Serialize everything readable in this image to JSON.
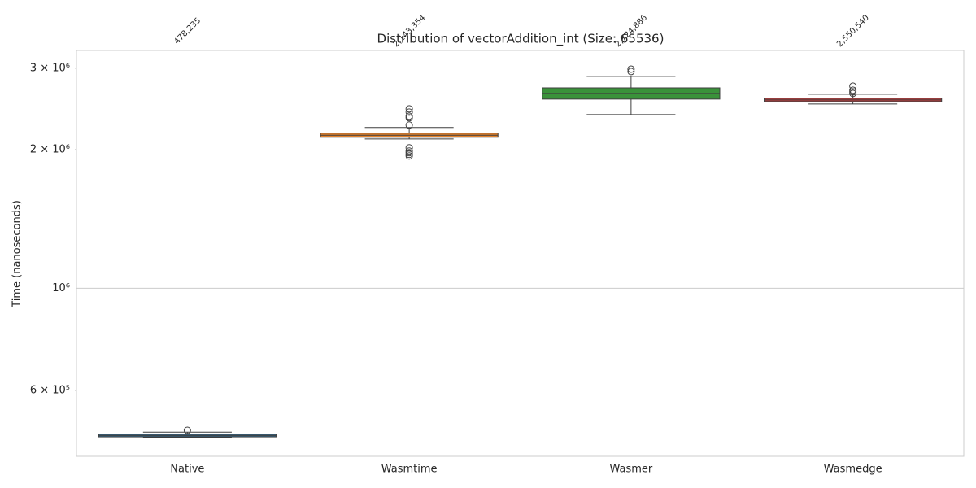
{
  "chart_data": {
    "type": "box",
    "title": "Distribution of vectorAddition_int (Size: 65536)",
    "ylabel": "Time (nanoseconds)",
    "log_y": true,
    "grid": true,
    "categories": [
      "Native",
      "Wasmtime",
      "Wasmer",
      "Wasmedge"
    ],
    "colors": [
      "#3274a1",
      "#e1812c",
      "#3a923a",
      "#c03d3e"
    ],
    "annotations": [
      "478,235",
      "2,143,354",
      "2,724,886",
      "2,550,540"
    ],
    "whisker_low": [
      474300,
      2108000,
      2381000,
      2510000
    ],
    "q1": [
      476100,
      2126000,
      2572000,
      2541000
    ],
    "median": [
      479000,
      2148000,
      2646000,
      2562000
    ],
    "q3": [
      482000,
      2170000,
      2721000,
      2583000
    ],
    "whisker_high": [
      487500,
      2232000,
      2881000,
      2635000
    ],
    "outliers": [
      [
        491900
      ],
      [
        2450000,
        2410000,
        2362000,
        2343000,
        2259000,
        2017000,
        1984000,
        1968000,
        1952000,
        1936000
      ],
      [
        2988000,
        2952000
      ],
      [
        2744000,
        2689000,
        2667000,
        2646000
      ]
    ],
    "ylim": [
      432000,
      3280000
    ],
    "yticks": [
      {
        "value": 1000000,
        "label": "10⁶"
      }
    ],
    "yminor_ticks": [
      {
        "value": 3000000,
        "label": "3 × 10⁶"
      },
      {
        "value": 2000000,
        "label": "2 × 10⁶"
      },
      {
        "value": 600000,
        "label": "6 × 10⁵"
      }
    ]
  }
}
